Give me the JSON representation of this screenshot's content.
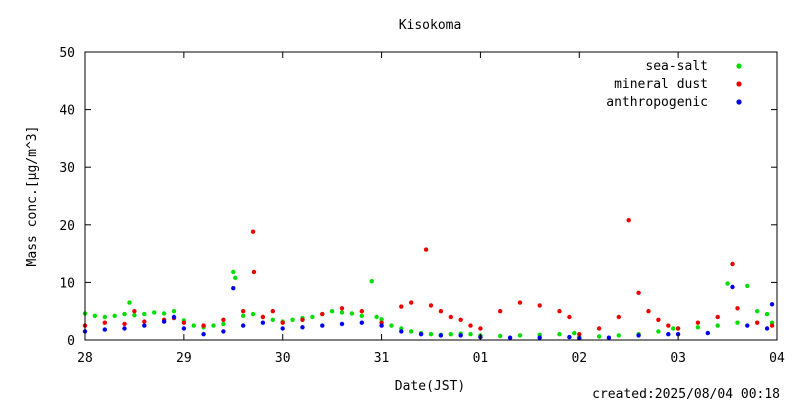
{
  "chart_data": {
    "type": "scatter",
    "title": "Kisokoma",
    "xlabel": "Date(JST)",
    "ylabel": "Mass conc.[μg/m^3]",
    "x_ticks": [
      "28",
      "29",
      "30",
      "31",
      "01",
      "02",
      "03",
      "04"
    ],
    "ylim": [
      0,
      50
    ],
    "y_ticks": [
      0,
      10,
      20,
      30,
      40,
      50
    ],
    "grid": false,
    "legend_position": "top-right",
    "footer": "created:2025/08/04 00:18",
    "series": [
      {
        "name": "sea-salt",
        "color": "#00dd00",
        "points": [
          [
            0.0,
            4.6
          ],
          [
            0.1,
            4.2
          ],
          [
            0.2,
            4.0
          ],
          [
            0.3,
            4.2
          ],
          [
            0.4,
            4.5
          ],
          [
            0.45,
            6.5
          ],
          [
            0.5,
            4.3
          ],
          [
            0.6,
            4.5
          ],
          [
            0.7,
            4.8
          ],
          [
            0.8,
            4.6
          ],
          [
            0.9,
            5.0
          ],
          [
            1.0,
            3.4
          ],
          [
            1.1,
            2.5
          ],
          [
            1.2,
            2.2
          ],
          [
            1.3,
            2.5
          ],
          [
            1.4,
            2.8
          ],
          [
            1.5,
            11.8
          ],
          [
            1.52,
            10.8
          ],
          [
            1.6,
            4.2
          ],
          [
            1.7,
            4.5
          ],
          [
            1.8,
            4.0
          ],
          [
            1.9,
            3.5
          ],
          [
            2.0,
            3.2
          ],
          [
            2.1,
            3.5
          ],
          [
            2.2,
            3.8
          ],
          [
            2.3,
            4.0
          ],
          [
            2.4,
            4.5
          ],
          [
            2.5,
            5.0
          ],
          [
            2.6,
            4.8
          ],
          [
            2.7,
            4.6
          ],
          [
            2.8,
            4.2
          ],
          [
            2.9,
            10.2
          ],
          [
            2.95,
            4.0
          ],
          [
            3.0,
            3.6
          ],
          [
            3.1,
            2.5
          ],
          [
            3.2,
            2.0
          ],
          [
            3.3,
            1.5
          ],
          [
            3.4,
            1.2
          ],
          [
            3.5,
            1.0
          ],
          [
            3.6,
            0.9
          ],
          [
            3.7,
            1.0
          ],
          [
            3.8,
            1.1
          ],
          [
            3.9,
            1.0
          ],
          [
            4.0,
            0.8
          ],
          [
            4.2,
            0.7
          ],
          [
            4.4,
            0.8
          ],
          [
            4.6,
            0.9
          ],
          [
            4.8,
            1.0
          ],
          [
            4.95,
            1.2
          ],
          [
            5.0,
            0.5
          ],
          [
            5.2,
            0.6
          ],
          [
            5.4,
            0.8
          ],
          [
            5.6,
            1.0
          ],
          [
            5.8,
            1.5
          ],
          [
            5.95,
            2.0
          ],
          [
            6.0,
            2.0
          ],
          [
            6.2,
            2.2
          ],
          [
            6.4,
            2.5
          ],
          [
            6.5,
            9.8
          ],
          [
            6.6,
            3.0
          ],
          [
            6.7,
            9.4
          ],
          [
            6.8,
            5.0
          ],
          [
            6.9,
            4.5
          ],
          [
            6.95,
            3.0
          ]
        ]
      },
      {
        "name": "mineral dust",
        "color": "#ee0000",
        "points": [
          [
            0.0,
            2.5
          ],
          [
            0.2,
            3.0
          ],
          [
            0.4,
            2.8
          ],
          [
            0.5,
            5.0
          ],
          [
            0.6,
            3.2
          ],
          [
            0.8,
            3.5
          ],
          [
            0.9,
            3.8
          ],
          [
            1.0,
            3.0
          ],
          [
            1.2,
            2.5
          ],
          [
            1.4,
            3.5
          ],
          [
            1.6,
            5.0
          ],
          [
            1.7,
            18.8
          ],
          [
            1.71,
            11.8
          ],
          [
            1.8,
            4.0
          ],
          [
            1.9,
            5.0
          ],
          [
            2.0,
            3.0
          ],
          [
            2.2,
            3.5
          ],
          [
            2.4,
            4.5
          ],
          [
            2.6,
            5.5
          ],
          [
            2.8,
            5.0
          ],
          [
            3.0,
            3.0
          ],
          [
            3.2,
            5.8
          ],
          [
            3.3,
            6.5
          ],
          [
            3.45,
            15.7
          ],
          [
            3.5,
            6.0
          ],
          [
            3.6,
            5.0
          ],
          [
            3.7,
            4.0
          ],
          [
            3.8,
            3.5
          ],
          [
            3.9,
            2.5
          ],
          [
            4.0,
            2.0
          ],
          [
            4.2,
            5.0
          ],
          [
            4.4,
            6.5
          ],
          [
            4.6,
            6.0
          ],
          [
            4.8,
            5.0
          ],
          [
            4.9,
            4.0
          ],
          [
            5.0,
            1.0
          ],
          [
            5.2,
            2.0
          ],
          [
            5.4,
            4.0
          ],
          [
            5.5,
            20.8
          ],
          [
            5.6,
            8.2
          ],
          [
            5.7,
            5.0
          ],
          [
            5.8,
            3.5
          ],
          [
            5.9,
            2.5
          ],
          [
            6.0,
            2.0
          ],
          [
            6.2,
            3.0
          ],
          [
            6.4,
            4.0
          ],
          [
            6.55,
            13.2
          ],
          [
            6.6,
            5.5
          ],
          [
            6.8,
            3.0
          ],
          [
            6.95,
            2.5
          ]
        ]
      },
      {
        "name": "anthropogenic",
        "color": "#0000ee",
        "points": [
          [
            0.0,
            1.5
          ],
          [
            0.2,
            1.8
          ],
          [
            0.4,
            2.0
          ],
          [
            0.6,
            2.5
          ],
          [
            0.8,
            3.2
          ],
          [
            0.9,
            4.0
          ],
          [
            1.0,
            2.0
          ],
          [
            1.2,
            1.0
          ],
          [
            1.4,
            1.5
          ],
          [
            1.5,
            9.0
          ],
          [
            1.6,
            2.5
          ],
          [
            1.8,
            3.0
          ],
          [
            2.0,
            2.0
          ],
          [
            2.2,
            2.2
          ],
          [
            2.4,
            2.5
          ],
          [
            2.6,
            2.8
          ],
          [
            2.8,
            3.0
          ],
          [
            3.0,
            2.5
          ],
          [
            3.2,
            1.5
          ],
          [
            3.4,
            1.0
          ],
          [
            3.6,
            0.8
          ],
          [
            3.8,
            0.8
          ],
          [
            4.0,
            0.5
          ],
          [
            4.3,
            0.4
          ],
          [
            4.6,
            0.4
          ],
          [
            4.9,
            0.5
          ],
          [
            5.0,
            0.3
          ],
          [
            5.3,
            0.4
          ],
          [
            5.6,
            0.8
          ],
          [
            5.9,
            1.0
          ],
          [
            6.0,
            1.0
          ],
          [
            6.3,
            1.2
          ],
          [
            6.55,
            9.2
          ],
          [
            6.7,
            2.5
          ],
          [
            6.9,
            2.0
          ],
          [
            6.95,
            6.2
          ]
        ]
      }
    ]
  }
}
